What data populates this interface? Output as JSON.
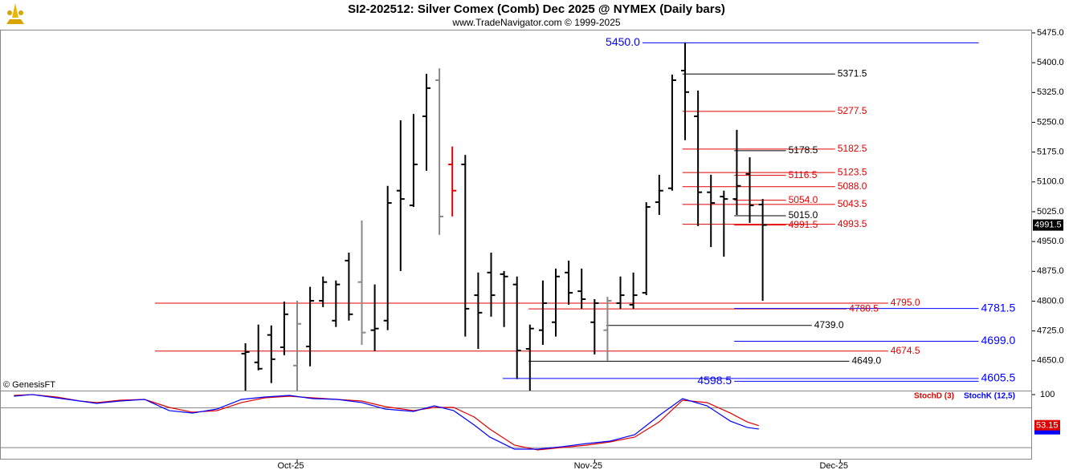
{
  "chart_data": {
    "type": "ohlc",
    "title": "SI2-202512:  Silver Comex (Comb) Dec 2025 @ NYMEX  (Daily bars)",
    "subtitle": "www.TradeNavigator.com © 1999-2025",
    "credit": "© GenesisFT",
    "x": [
      -4,
      -3,
      -2,
      -1,
      0,
      1,
      2,
      3,
      4,
      5,
      6,
      7,
      8,
      9,
      10,
      11,
      12,
      13,
      14,
      15,
      16,
      17,
      18,
      19,
      20,
      21,
      22,
      23,
      24,
      25,
      26,
      27,
      28,
      29,
      30,
      31,
      32,
      33,
      34,
      35,
      36
    ],
    "open": [
      4668,
      4646,
      4715,
      4684,
      4638,
      4686,
      4801,
      4751,
      4902,
      4848,
      4727,
      4751,
      5078,
      5041,
      5265,
      5356,
      5144,
      5144,
      4815,
      4872,
      4868,
      4842,
      4680,
      4727,
      4747,
      4872,
      4825,
      4747,
      4727,
      4795,
      4791,
      4821,
      5049,
      5084,
      5380,
      5265,
      5074,
      5063,
      5057,
      5120,
      5043
    ],
    "high": [
      4694,
      4741,
      4739,
      4799,
      4801,
      4836,
      4862,
      4852,
      4922,
      5003,
      4842,
      5090,
      5255,
      5271,
      5372,
      5386,
      5189,
      5168,
      4872,
      4922,
      4876,
      4862,
      4741,
      4852,
      4882,
      4902,
      4882,
      4805,
      4811,
      4862,
      4872,
      5049,
      5118,
      5370,
      5451,
      5330,
      5118,
      5078,
      5231,
      5162,
      5057
    ],
    "low": [
      4575,
      4626,
      4594,
      4664,
      4575,
      4636,
      4785,
      4735,
      4751,
      4690,
      4674,
      4727,
      4876,
      5037,
      5128,
      4967,
      5013,
      4711,
      4680,
      4761,
      4735,
      4604,
      4575,
      4690,
      4711,
      4791,
      4781,
      4666,
      4650,
      4781,
      4781,
      4815,
      5017,
      5078,
      5205,
      4989,
      4936,
      4912,
      5017,
      4997,
      4801
    ],
    "close": [
      4672,
      4630,
      4654,
      4767,
      4743,
      4801,
      4848,
      4842,
      4767,
      4721,
      4731,
      5047,
      5057,
      5144,
      5336,
      5013,
      5078,
      4781,
      4771,
      4815,
      4862,
      4676,
      4731,
      4795,
      4862,
      4821,
      4805,
      4795,
      4801,
      4815,
      4815,
      5037,
      5078,
      5356,
      5326,
      5074,
      5047,
      5057,
      5090,
      5041,
      4991.5
    ],
    "bar_colors": [
      "#000",
      "#000",
      "#000",
      "#000",
      "#888",
      "#000",
      "#000",
      "#000",
      "#000",
      "#888",
      "#000",
      "#000",
      "#000",
      "#000",
      "#000",
      "#888",
      "#e00000",
      "#000",
      "#000",
      "#000",
      "#000",
      "#000",
      "#000",
      "#000",
      "#000",
      "#000",
      "#000",
      "#000",
      "#888",
      "#000",
      "#000",
      "#000",
      "#000",
      "#000",
      "#000",
      "#000",
      "#000",
      "#000",
      "#000",
      "#000",
      "#000"
    ],
    "xlim": [
      -22.98,
      56.83
    ],
    "xticks": [
      {
        "value": 0,
        "label": "Oct-25"
      },
      {
        "value": 23,
        "label": "Nov-25"
      },
      {
        "value": 42,
        "label": "Dec-25"
      }
    ],
    "ylim": [
      4575,
      5483
    ],
    "yticks": [
      {
        "value": 4650,
        "label": "4650.0"
      },
      {
        "value": 4725,
        "label": "4725.0"
      },
      {
        "value": 4800,
        "label": "4800.0"
      },
      {
        "value": 4875,
        "label": "4875.0"
      },
      {
        "value": 4950,
        "label": "4950.0"
      },
      {
        "value": 5025,
        "label": "5025.0"
      },
      {
        "value": 5100,
        "label": "5100.0"
      },
      {
        "value": 5175,
        "label": "5175.0"
      },
      {
        "value": 5250,
        "label": "5250.0"
      },
      {
        "value": 5325,
        "label": "5325.0"
      },
      {
        "value": 5400,
        "label": "5400.0"
      },
      {
        "value": 5475,
        "label": "5475.0"
      }
    ],
    "last_price": {
      "value": 4991.5,
      "label": "4991.5"
    },
    "levels": [
      {
        "value": 5450,
        "label": "5450.0",
        "color": "#0000ff",
        "from": 26.7,
        "to": 52.7,
        "side": "left"
      },
      {
        "value": 5371.5,
        "label": "5371.5",
        "color": "#000",
        "from": 29.8,
        "to": 41.6
      },
      {
        "value": 5277.5,
        "label": "5277.5",
        "color": "#e00000",
        "from": 29.8,
        "to": 41.6
      },
      {
        "value": 5182.5,
        "label": "5182.5",
        "color": "#e00000",
        "from": 29.8,
        "to": 41.6
      },
      {
        "value": 5178.5,
        "label": "5178.5",
        "color": "#000",
        "from": 33.8,
        "to": 37.8
      },
      {
        "value": 5123.5,
        "label": "5123.5",
        "color": "#e00000",
        "from": 29.8,
        "to": 41.6
      },
      {
        "value": 5116.5,
        "label": "5116.5",
        "color": "#e00000",
        "from": 33.8,
        "to": 37.8
      },
      {
        "value": 5088,
        "label": "5088.0",
        "color": "#e00000",
        "from": 29.8,
        "to": 41.6
      },
      {
        "value": 5054,
        "label": "5054.0",
        "color": "#e00000",
        "from": 33.8,
        "to": 37.8
      },
      {
        "value": 5043.5,
        "label": "5043.5",
        "color": "#e00000",
        "from": 29.8,
        "to": 41.6
      },
      {
        "value": 5015,
        "label": "5015.0",
        "color": "#000",
        "from": 33.8,
        "to": 37.8
      },
      {
        "value": 4991.5,
        "label": "4991.5",
        "color": "#e00000",
        "from": 33.8,
        "to": 37.8
      },
      {
        "value": 4993.5,
        "label": "4993.5",
        "color": "#e00000",
        "from": 29.8,
        "to": 41.6
      },
      {
        "value": 4795,
        "label": "4795.0",
        "color": "#e00000",
        "from": -11,
        "to": 45.7
      },
      {
        "value": 4780.5,
        "label": "4780.5",
        "color": "#e00000",
        "from": 17.9,
        "to": 42.5
      },
      {
        "value": 4781.5,
        "label": "4781.5",
        "color": "#0000ff",
        "from": 33.8,
        "to": 52.7
      },
      {
        "value": 4739,
        "label": "4739.0",
        "color": "#000",
        "from": 23.9,
        "to": 39.8
      },
      {
        "value": 4699,
        "label": "4699.0",
        "color": "#0000ff",
        "from": 33.8,
        "to": 52.7
      },
      {
        "value": 4674.5,
        "label": "4674.5",
        "color": "#e00000",
        "from": -11,
        "to": 45.7
      },
      {
        "value": 4649,
        "label": "4649.0",
        "color": "#000",
        "from": 17.9,
        "to": 42.7
      },
      {
        "value": 4605.5,
        "label": "4605.5",
        "color": "#0000ff",
        "from": 15.9,
        "to": 52.7
      },
      {
        "value": 4598.5,
        "label": "4598.5",
        "color": "#0000ff",
        "from": 33.8,
        "to": 52.7,
        "side": "left"
      }
    ],
    "stoch": {
      "ylim": [
        2,
        106
      ],
      "yticks": [
        100
      ],
      "levels": [
        80,
        20
      ],
      "x": [
        -21.9,
        -20.5,
        -18.6,
        -16.8,
        -15.5,
        -13.7,
        -11.8,
        -9.9,
        -8.1,
        -6.2,
        -4.3,
        -2.5,
        -0.6,
        1.2,
        3.1,
        5.0,
        6.8,
        9.0,
        10.6,
        12.1,
        13.7,
        14.9,
        16.8,
        18.6,
        20.5,
        22.4,
        24.2,
        26.1,
        28.0,
        29.8,
        31.7,
        33.5,
        34.8,
        35.7
      ],
      "series": [
        {
          "name": "StochD (3)",
          "color": "#e00000",
          "values": [
            98.7,
            100,
            96.3,
            90.3,
            87.9,
            91.5,
            92.7,
            80.6,
            73.4,
            75.8,
            87.9,
            95.1,
            97.5,
            95.1,
            92.7,
            90.3,
            81.8,
            75.8,
            80.6,
            80.6,
            66.1,
            48,
            23.8,
            16.5,
            20.2,
            23.8,
            28.6,
            35.9,
            58.8,
            91.5,
            87.9,
            72.1,
            58.8,
            53.15
          ]
        },
        {
          "name": "StochK (12,5)",
          "color": "#0000ff",
          "values": [
            97.5,
            100,
            95,
            90.3,
            86.7,
            90.3,
            92.7,
            75.8,
            72.1,
            78.2,
            92.7,
            96.3,
            98.7,
            93.9,
            92.7,
            87.9,
            78.2,
            74.6,
            83,
            75.8,
            54,
            35.9,
            17.7,
            17.7,
            21.4,
            26.2,
            29.8,
            39.5,
            68.5,
            93.9,
            83,
            60,
            50.4,
            48
          ]
        }
      ],
      "last": {
        "value": 53.15,
        "label": "53.15"
      }
    }
  }
}
